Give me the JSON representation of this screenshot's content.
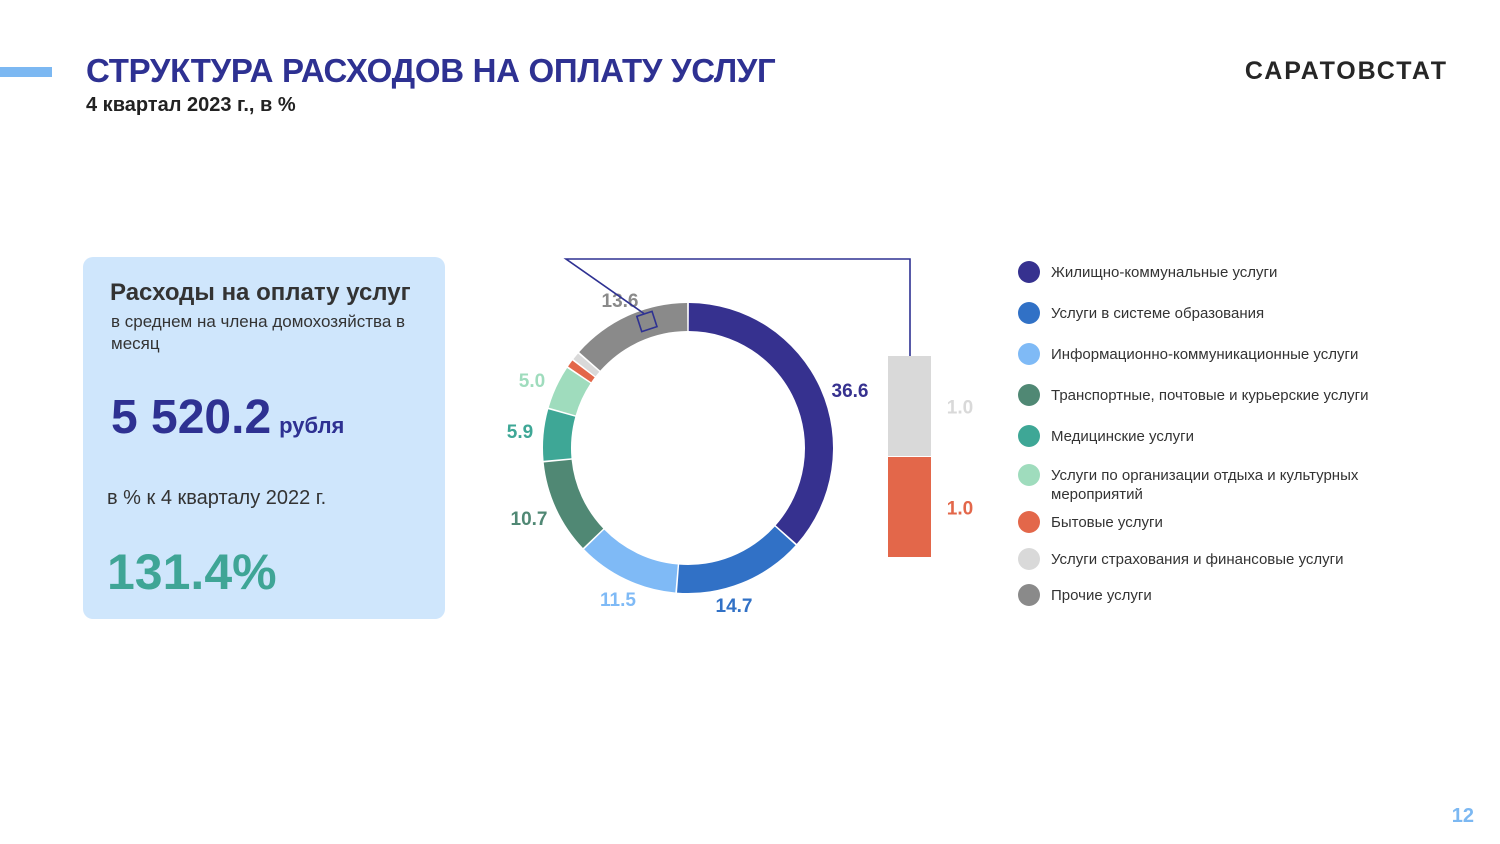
{
  "header": {
    "title": "СТРУКТУРА РАСХОДОВ НА ОПЛАТУ УСЛУГ",
    "subtitle": "4 квартал 2023 г., в %",
    "logo": "САРАТОВСТАТ"
  },
  "card": {
    "title": "Расходы на оплату услуг",
    "description": "в среднем на  члена домохозяйства в месяц",
    "value": "5 520.2",
    "unit": "рубля",
    "compare_label": "в % к 4 кварталу 2022 г.",
    "index_value": "131.4%"
  },
  "chart_data": {
    "type": "pie",
    "variant": "donut",
    "series": [
      {
        "name": "Жилищно-коммунальные услуги",
        "value": 36.6,
        "label": "36.6",
        "color": "#36318f"
      },
      {
        "name": "Услуги в системе образования",
        "value": 14.7,
        "label": "14.7",
        "color": "#3171c6"
      },
      {
        "name": "Информационно-коммуникационные услуги",
        "value": 11.5,
        "label": "11.5",
        "color": "#7fbaf6"
      },
      {
        "name": "Транспортные, почтовые и курьерские услуги",
        "value": 10.7,
        "label": "10.7",
        "color": "#508874"
      },
      {
        "name": "Медицинские услуги",
        "value": 5.9,
        "label": "5.9",
        "color": "#3ea796"
      },
      {
        "name": "Услуги по организации отдыха и культурных мероприятий",
        "value": 5.0,
        "label": "5.0",
        "color": "#9fdcbd"
      },
      {
        "name": "Бытовые услуги",
        "value": 1.0,
        "label": "1.0",
        "color": "#e3674a"
      },
      {
        "name": "Услуги страхования и финансовые услуги",
        "value": 1.0,
        "label": "1.0",
        "color": "#d9d9d9"
      },
      {
        "name": "Прочие услуги",
        "value": 13.6,
        "label": "13.6",
        "color": "#8a8a8a"
      }
    ],
    "detail_bar": {
      "segments": [
        {
          "name": "Услуги страхования и финансовые услуги",
          "value": 1.0,
          "label": "1.0",
          "color": "#d9d9d9"
        },
        {
          "name": "Бытовые услуги",
          "value": 1.0,
          "label": "1.0",
          "color": "#e3674a"
        }
      ]
    },
    "legend_position": "right"
  },
  "page": {
    "number": "12"
  }
}
